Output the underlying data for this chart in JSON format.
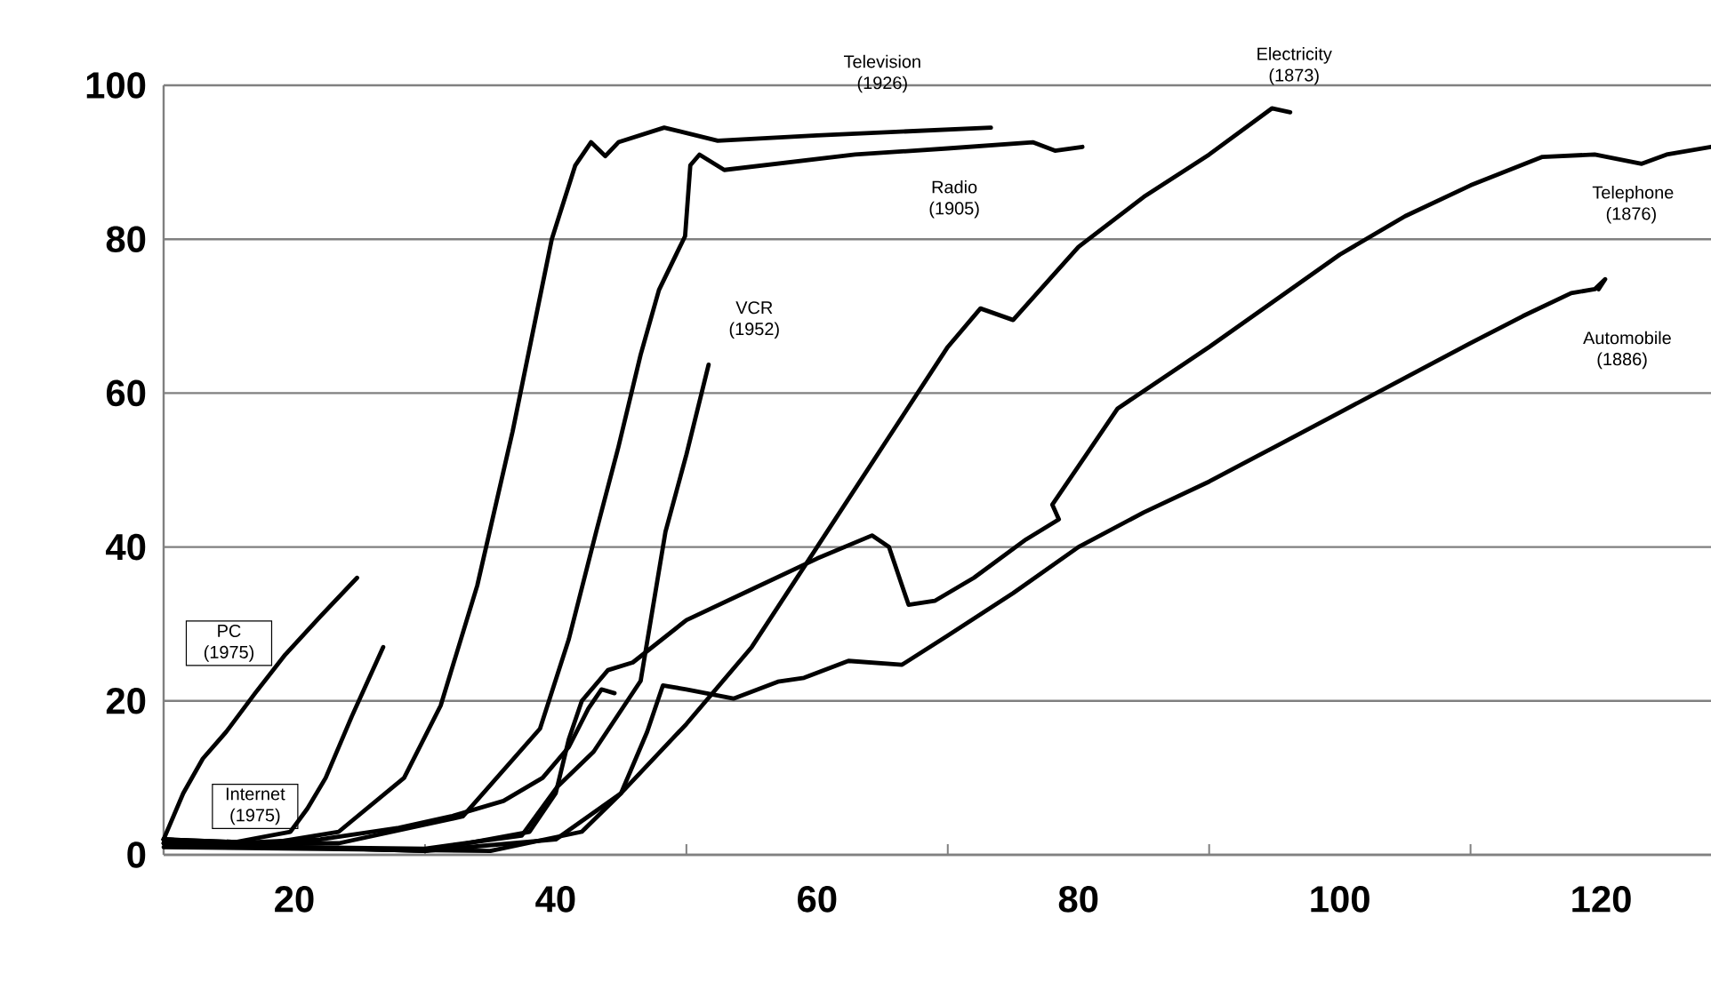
{
  "chart_data": {
    "type": "line",
    "xlim": [
      10,
      128.4
    ],
    "ylim": [
      0,
      100
    ],
    "xticks": [
      20,
      {
        "value": 30,
        "label": null
      },
      40,
      {
        "value": 50,
        "label": null
      },
      60,
      {
        "value": 70,
        "label": null
      },
      80,
      {
        "value": 90,
        "label": null
      },
      100,
      {
        "value": 110,
        "label": null
      },
      120
    ],
    "yticks": [
      0,
      20,
      40,
      60,
      80,
      100
    ],
    "grid": "y",
    "marker": "none",
    "line_style": "solid",
    "series": [
      {
        "name": "PC (1975)",
        "color": "#000000",
        "x": [
          10,
          11.5,
          13,
          14.8,
          17,
          19.3,
          22,
          24.8
        ],
        "values": [
          2,
          8,
          12.5,
          16,
          21,
          26,
          31,
          36
        ]
      },
      {
        "color": "#000000",
        "x": [
          10,
          15,
          19.7,
          21,
          22.4,
          24.4,
          26.8
        ],
        "values": [
          2,
          1.5,
          3,
          6,
          10,
          18,
          27
        ]
      },
      {
        "name": "Internet (1975)",
        "color": "#000000",
        "x": [
          10,
          15,
          22,
          28,
          32,
          36,
          39,
          41,
          42.5,
          43.5,
          44.5
        ],
        "values": [
          2,
          1.5,
          2,
          3.5,
          5,
          7,
          10,
          14,
          19,
          21.5,
          21
        ]
      },
      {
        "name": "Television (1926)",
        "color": "#000000",
        "x": [
          10,
          18,
          23.4,
          28.4,
          31.2,
          34,
          36.7,
          38.5,
          39.7,
          41.5,
          42.7,
          43.8,
          44.8,
          48.3,
          52.4,
          60,
          73.3
        ],
        "values": [
          2,
          1.5,
          3,
          10,
          19.4,
          35,
          55,
          70,
          80,
          89.6,
          92.6,
          90.8,
          92.6,
          94.5,
          92.8,
          93.5,
          94.5
        ]
      },
      {
        "name": "Radio (1905)",
        "color": "#000000",
        "x": [
          10,
          18,
          23.4,
          32.9,
          38.8,
          41,
          43.1,
          44.8,
          46.5,
          47.9,
          49.9,
          50.3,
          51,
          52.9,
          62.9,
          70,
          76.5,
          78.2,
          80.3
        ],
        "values": [
          2,
          1.5,
          1.5,
          5,
          16.4,
          28,
          42,
          53,
          65,
          73.4,
          80.4,
          89.6,
          91,
          89,
          91,
          91.8,
          92.6,
          91.5,
          92
        ]
      },
      {
        "name": "VCR (1952)",
        "color": "#000000",
        "x": [
          10,
          20,
          30,
          37.4,
          40.1,
          42.9,
          46.5,
          48.4,
          50,
          51.7
        ],
        "values": [
          1.5,
          1,
          0.8,
          2.5,
          8.8,
          13.4,
          22.6,
          42,
          52,
          63.7
        ]
      },
      {
        "name": "Electricity (1873)",
        "color": "#000000",
        "x": [
          10,
          30,
          40,
          45,
          50,
          55,
          60,
          65,
          70,
          72.5,
          75,
          80,
          85,
          90,
          94.8,
          96.2
        ],
        "values": [
          1.5,
          0.5,
          2,
          8,
          17,
          27,
          40,
          53,
          66,
          71,
          69.5,
          79,
          85.5,
          91,
          97,
          96.5
        ]
      },
      {
        "name": "Telephone (1876)",
        "color": "#000000",
        "x": [
          10,
          30,
          38,
          40,
          41,
          42,
          44,
          45.9,
          50,
          55,
          60,
          64.2,
          65.5,
          66.5,
          67,
          69,
          72,
          76,
          78.5,
          78,
          83,
          90,
          95,
          100,
          105,
          110,
          115.5,
          119.5,
          123.1,
          125,
          128.4
        ],
        "values": [
          1.5,
          0.5,
          3,
          8,
          15,
          20,
          24,
          25,
          30.5,
          34.5,
          38.5,
          41.5,
          40,
          35,
          32.5,
          33,
          36,
          41,
          43.6,
          45.5,
          58,
          66,
          72,
          78,
          83,
          87,
          90.7,
          91,
          89.8,
          91,
          92
        ]
      },
      {
        "name": "Automobile (1886)",
        "color": "#000000",
        "x": [
          10,
          35,
          42,
          45,
          47,
          48.2,
          50,
          53.6,
          57,
          59,
          62.4,
          66.5,
          70,
          75,
          80,
          85,
          90,
          95,
          100,
          105,
          110,
          114,
          117.7,
          119.5,
          120.3,
          119.8
        ],
        "values": [
          1,
          0.5,
          3,
          8,
          16,
          22,
          21.5,
          20.3,
          22.5,
          23,
          25.2,
          24.7,
          28.5,
          34,
          40,
          44.5,
          48.5,
          53,
          57.5,
          62,
          66.5,
          70,
          73,
          73.5,
          74.8,
          73.5
        ]
      }
    ]
  }
}
